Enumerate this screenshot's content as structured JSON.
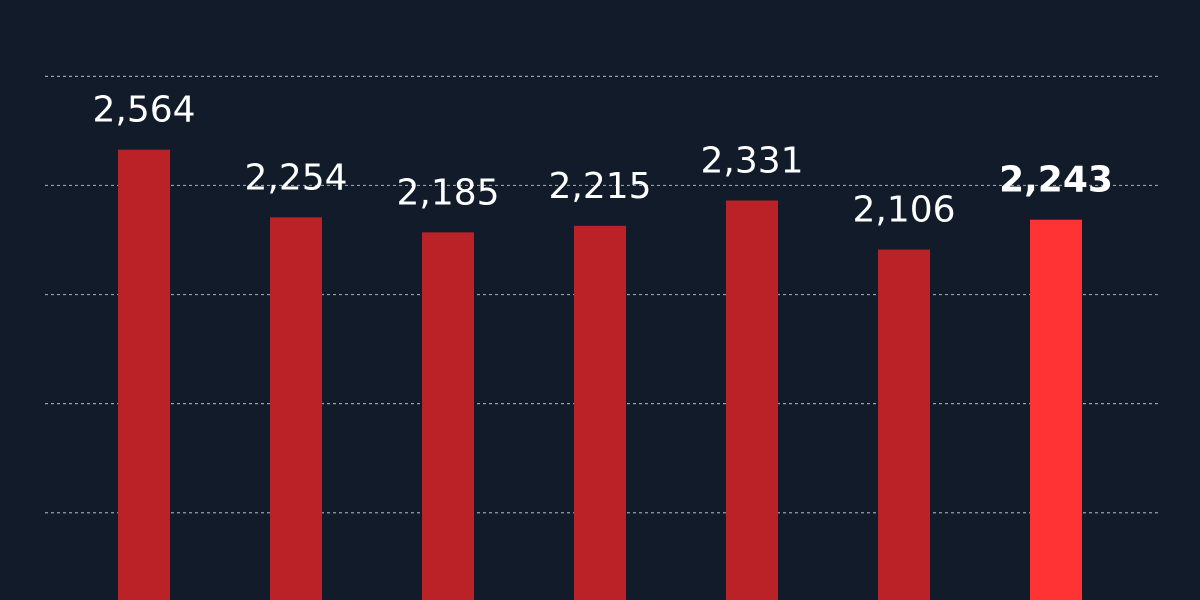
{
  "chart_data": {
    "type": "bar",
    "values": [
      2564,
      2254,
      2185,
      2215,
      2331,
      2106,
      2243
    ],
    "value_labels": [
      "2,564",
      "2,254",
      "2,185",
      "2,215",
      "2,331",
      "2,106",
      "2,243"
    ],
    "colors": [
      "#bb2228",
      "#bb2228",
      "#bb2228",
      "#bb2228",
      "#bb2228",
      "#bb2228",
      "#ff3333"
    ],
    "highlight_index": 6,
    "ylim": [
      500,
      3250
    ],
    "yticks": [
      900,
      1400,
      1900,
      2400,
      2900
    ],
    "grid": true
  }
}
